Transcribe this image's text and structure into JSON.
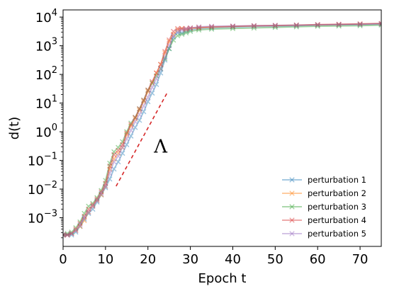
{
  "chart_data": {
    "type": "line",
    "xlabel": "Epoch t",
    "ylabel": "d(t)",
    "xlim": [
      0,
      75
    ],
    "ylim_log10": [
      -4.0,
      4.25
    ],
    "yscale": "log",
    "xticks": [
      0,
      10,
      20,
      30,
      40,
      50,
      60,
      70
    ],
    "yticks": [
      {
        "exp": -3,
        "base": "10",
        "sup": "−3"
      },
      {
        "exp": -2,
        "base": "10",
        "sup": "−2"
      },
      {
        "exp": -1,
        "base": "10",
        "sup": "−1"
      },
      {
        "exp": 0,
        "base": "10",
        "sup": "0"
      },
      {
        "exp": 1,
        "base": "10",
        "sup": "1"
      },
      {
        "exp": 2,
        "base": "10",
        "sup": "2"
      },
      {
        "exp": 3,
        "base": "10",
        "sup": "3"
      },
      {
        "exp": 4,
        "base": "10",
        "sup": "4"
      }
    ],
    "grid": false,
    "legend_position": "bottom-right",
    "marker": "x",
    "annotation": {
      "text": "Λ",
      "line_x": [
        12.5,
        24.5
      ],
      "line_log10y": [
        -1.9,
        1.35
      ],
      "color": "#d62728",
      "style": "dashed",
      "text_x": 23,
      "text_log10y": -0.5
    },
    "series": [
      {
        "name": "perturbation 1",
        "color": "#1f77b4",
        "x": [
          0,
          1,
          2,
          3,
          4,
          5,
          6,
          7,
          8,
          9,
          10,
          11,
          12,
          13,
          14,
          15,
          16,
          17,
          18,
          19,
          20,
          21,
          22,
          23,
          24,
          25,
          26,
          27,
          28,
          29,
          30,
          32,
          35,
          40,
          45,
          50,
          55,
          60,
          65,
          70,
          75
        ],
        "log10y": [
          -3.6,
          -3.6,
          -3.6,
          -3.5,
          -3.3,
          -3.05,
          -2.85,
          -2.7,
          -2.45,
          -2.2,
          -1.95,
          -1.65,
          -1.3,
          -1.05,
          -0.75,
          -0.45,
          -0.15,
          0.15,
          0.4,
          0.7,
          1.05,
          1.35,
          1.65,
          2.05,
          2.5,
          2.9,
          3.3,
          3.45,
          3.45,
          3.5,
          3.55,
          3.6,
          3.62,
          3.65,
          3.67,
          3.68,
          3.7,
          3.72,
          3.73,
          3.74,
          3.75
        ]
      },
      {
        "name": "perturbation 2",
        "color": "#ff7f0e",
        "x": [
          0,
          1,
          2,
          3,
          4,
          5,
          6,
          7,
          8,
          9,
          10,
          11,
          12,
          13,
          14,
          15,
          16,
          17,
          18,
          19,
          20,
          21,
          22,
          23,
          24,
          25,
          26,
          27,
          28,
          29,
          30,
          32,
          35,
          40,
          45,
          50,
          55,
          60,
          65,
          70,
          75
        ],
        "log10y": [
          -3.6,
          -3.6,
          -3.55,
          -3.45,
          -3.3,
          -3.1,
          -2.8,
          -2.6,
          -2.4,
          -2.2,
          -1.9,
          -1.3,
          -0.95,
          -0.75,
          -0.55,
          -0.1,
          0.2,
          0.45,
          0.75,
          1.05,
          1.4,
          1.7,
          2.05,
          2.35,
          2.75,
          3.15,
          3.4,
          3.55,
          3.6,
          3.55,
          3.6,
          3.62,
          3.65,
          3.67,
          3.69,
          3.7,
          3.72,
          3.73,
          3.74,
          3.76,
          3.77
        ]
      },
      {
        "name": "perturbation 3",
        "color": "#2ca02c",
        "x": [
          0,
          1,
          2,
          3,
          4,
          5,
          6,
          7,
          8,
          9,
          10,
          11,
          12,
          13,
          14,
          15,
          16,
          17,
          18,
          19,
          20,
          21,
          22,
          23,
          24,
          25,
          26,
          27,
          28,
          29,
          30,
          32,
          35,
          40,
          45,
          50,
          55,
          60,
          65,
          70,
          75
        ],
        "log10y": [
          -3.6,
          -3.55,
          -3.5,
          -3.35,
          -3.15,
          -2.85,
          -2.6,
          -2.5,
          -2.3,
          -2.05,
          -1.7,
          -1.1,
          -0.7,
          -0.55,
          -0.35,
          0.0,
          0.3,
          0.5,
          0.8,
          1.1,
          1.45,
          1.7,
          1.95,
          2.2,
          2.55,
          2.9,
          3.2,
          3.35,
          3.4,
          3.45,
          3.5,
          3.55,
          3.58,
          3.6,
          3.62,
          3.64,
          3.66,
          3.68,
          3.69,
          3.7,
          3.72
        ]
      },
      {
        "name": "perturbation 4",
        "color": "#d62728",
        "x": [
          0,
          1,
          2,
          3,
          4,
          5,
          6,
          7,
          8,
          9,
          10,
          11,
          12,
          13,
          14,
          15,
          16,
          17,
          18,
          19,
          20,
          21,
          22,
          23,
          24,
          25,
          26,
          27,
          28,
          29,
          30,
          32,
          35,
          40,
          45,
          50,
          55,
          60,
          65,
          70,
          75
        ],
        "log10y": [
          -3.6,
          -3.6,
          -3.55,
          -3.4,
          -3.2,
          -2.95,
          -2.7,
          -2.55,
          -2.35,
          -2.1,
          -1.8,
          -1.2,
          -0.8,
          -0.65,
          -0.45,
          -0.05,
          0.25,
          0.5,
          0.8,
          1.1,
          1.45,
          1.75,
          2.05,
          2.35,
          2.8,
          3.2,
          3.5,
          3.6,
          3.6,
          3.6,
          3.62,
          3.64,
          3.66,
          3.68,
          3.7,
          3.71,
          3.72,
          3.74,
          3.75,
          3.76,
          3.78
        ]
      },
      {
        "name": "perturbation 5",
        "color": "#9467bd",
        "x": [
          0,
          1,
          2,
          3,
          4,
          5,
          6,
          7,
          8,
          9,
          10,
          11,
          12,
          13,
          14,
          15,
          16,
          17,
          18,
          19,
          20,
          21,
          22,
          23,
          24,
          25,
          26,
          27,
          28,
          29,
          30,
          32,
          35,
          40,
          45,
          50,
          55,
          60,
          65,
          70,
          75
        ],
        "log10y": [
          -3.6,
          -3.6,
          -3.55,
          -3.45,
          -3.25,
          -3.0,
          -2.8,
          -2.6,
          -2.4,
          -2.15,
          -1.9,
          -1.45,
          -1.05,
          -0.85,
          -0.55,
          -0.25,
          0.05,
          0.35,
          0.6,
          0.9,
          1.2,
          1.55,
          1.85,
          2.2,
          2.6,
          3.0,
          3.35,
          3.5,
          3.55,
          3.58,
          3.62,
          3.66,
          3.68,
          3.69,
          3.7,
          3.71,
          3.72,
          3.73,
          3.74,
          3.75,
          3.77
        ]
      }
    ]
  }
}
